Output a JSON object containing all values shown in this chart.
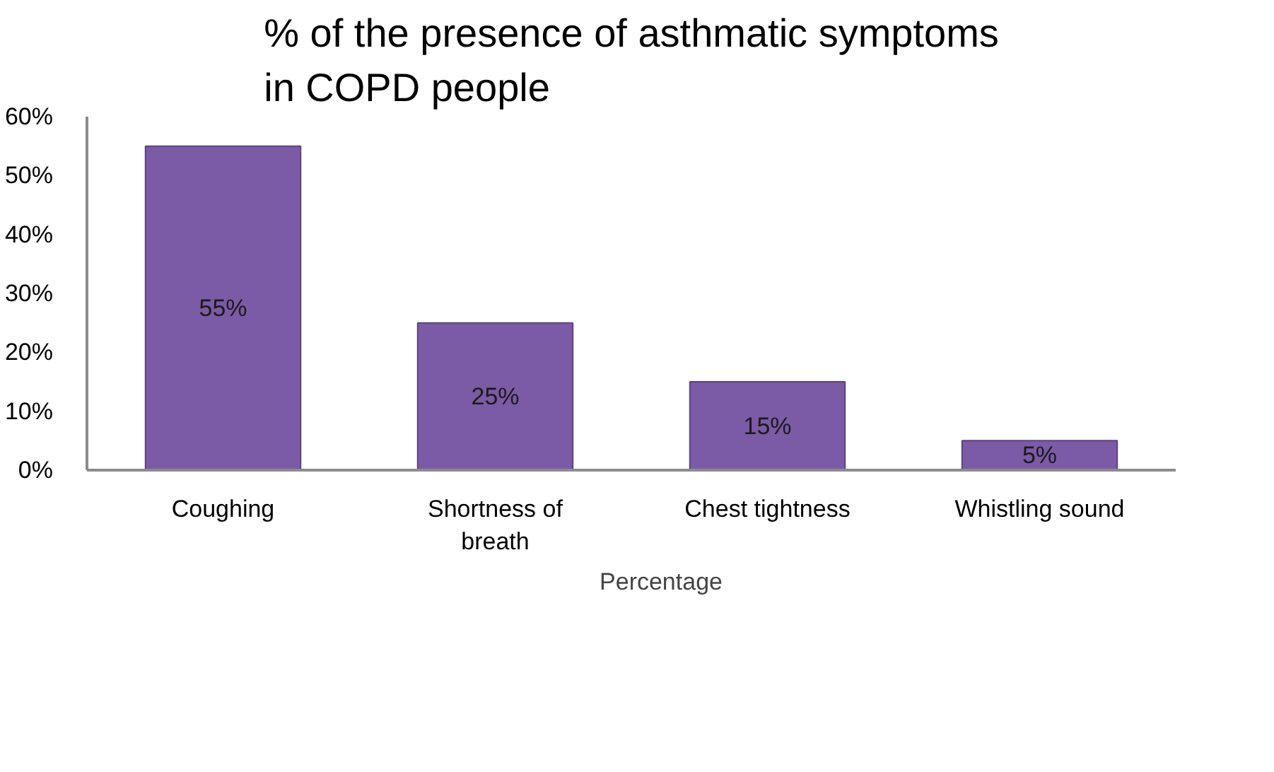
{
  "chart_data": {
    "type": "bar",
    "title": "% of the presence of asthmatic symptoms in COPD people",
    "categories": [
      "Coughing",
      "Shortness of breath",
      "Chest tightness",
      "Whistling sound"
    ],
    "series": [
      {
        "name": "Percentage",
        "color": "#7b5aa6",
        "values": [
          55,
          25,
          15,
          5
        ],
        "value_labels": [
          "55%",
          "25%",
          "15%",
          "5%"
        ]
      }
    ],
    "ylim": [
      0,
      60
    ],
    "yticks": [
      {
        "value": 0,
        "label": "0%"
      },
      {
        "value": 10,
        "label": "10%"
      },
      {
        "value": 20,
        "label": "20%"
      },
      {
        "value": 30,
        "label": "30%"
      },
      {
        "value": 40,
        "label": "40%"
      },
      {
        "value": 50,
        "label": "50%"
      },
      {
        "value": 60,
        "label": "60%"
      }
    ],
    "grid": false,
    "legend": "bottom"
  }
}
